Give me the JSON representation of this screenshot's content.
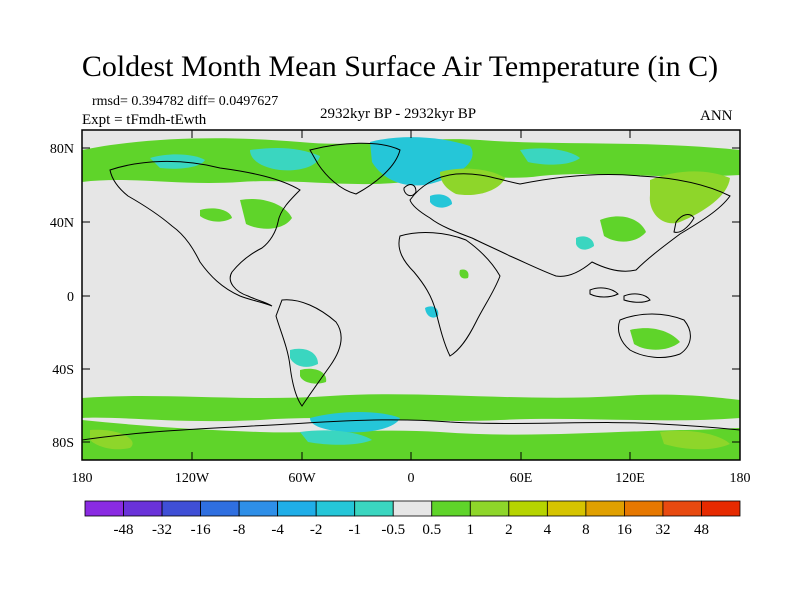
{
  "title": "Coldest Month Mean Surface Air Temperature (in C)",
  "stats": "rmsd= 0.394782 diff= 0.0497627",
  "expt": "Expt = tFmdh-tEwth",
  "period": "2932kyr BP - 2932kyr BP",
  "season": "ANN",
  "lat_ticks": [
    "80N",
    "40N",
    "0",
    "40S",
    "80S"
  ],
  "lon_ticks": [
    "180",
    "120W",
    "60W",
    "0",
    "60E",
    "120E",
    "180"
  ],
  "colorbar": {
    "labels": [
      "-48",
      "-32",
      "-16",
      "-8",
      "-4",
      "-2",
      "-1",
      "-0.5",
      "0.5",
      "1",
      "2",
      "4",
      "8",
      "16",
      "32",
      "48"
    ],
    "colors": [
      "#8a2be2",
      "#6a32d9",
      "#3f4fd6",
      "#2f6fe0",
      "#2e8fe8",
      "#20aee8",
      "#25c6d8",
      "#3ad6c0",
      "#e6e6e6",
      "#5fd42a",
      "#8ed62a",
      "#b6d400",
      "#d6c400",
      "#e0a000",
      "#e67800",
      "#e84a10",
      "#e62a00"
    ]
  },
  "map": {
    "ocean_color": "#e6e6e6",
    "coast_color": "#000000"
  }
}
